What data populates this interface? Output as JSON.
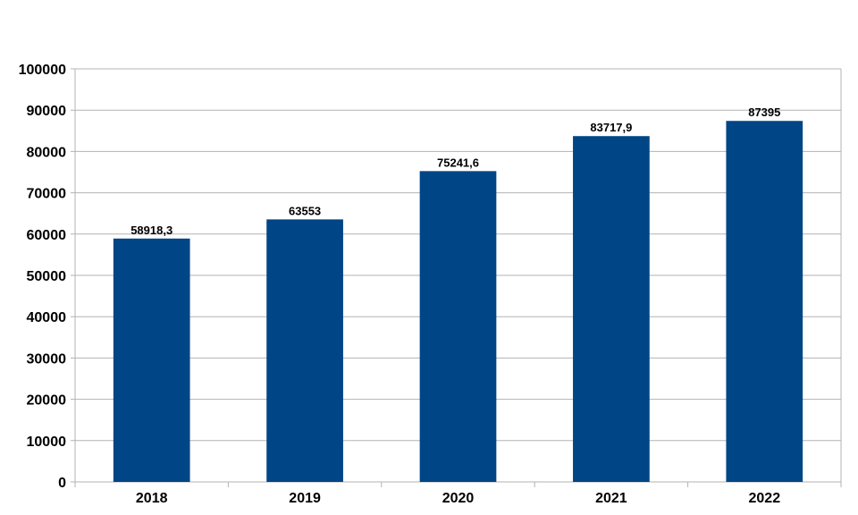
{
  "chart_data": {
    "type": "bar",
    "categories": [
      "2018",
      "2019",
      "2020",
      "2021",
      "2022"
    ],
    "values": [
      58918.3,
      63553,
      75241.6,
      83717.9,
      87395
    ],
    "data_labels": [
      "58918,3",
      "63553",
      "75241,6",
      "83717,9",
      "87395"
    ],
    "y_ticks": [
      "0",
      "10000",
      "20000",
      "30000",
      "40000",
      "50000",
      "60000",
      "70000",
      "80000",
      "90000",
      "100000"
    ],
    "ylim": [
      0,
      100000
    ],
    "y_step": 10000,
    "grid": true,
    "legend": "none",
    "bar_color": "#004586"
  }
}
